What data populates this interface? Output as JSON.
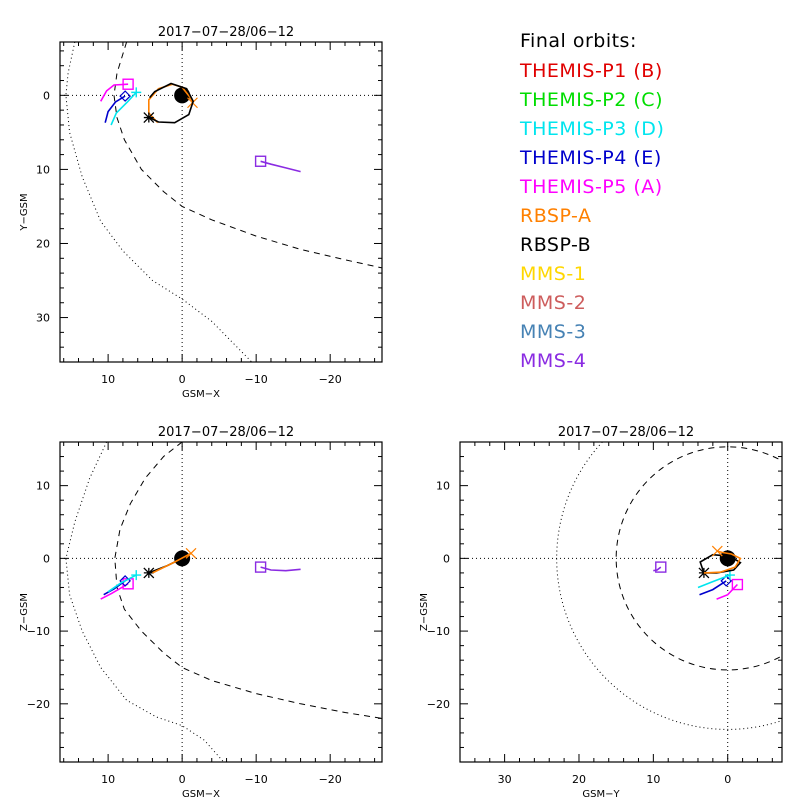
{
  "chart_data": [
    {
      "type": "line",
      "panel": "top-left",
      "title": "2017-07-28/06-12",
      "xlabel": "GSM-X",
      "ylabel": "Y-GSM",
      "xlim": [
        16.5,
        -27
      ],
      "ylim": [
        -7.2,
        36
      ],
      "y_inverted": true,
      "xticks": [
        10,
        0,
        -10,
        -20
      ],
      "yticks": [
        0,
        10,
        20,
        30
      ],
      "grid": "dotted zero lines",
      "boundaries": {
        "magnetopause": {
          "style": "dashed",
          "points": [
            [
              7.5,
              -7.2
            ],
            [
              8.8,
              -3
            ],
            [
              9.2,
              0
            ],
            [
              8.8,
              3
            ],
            [
              7.8,
              6
            ],
            [
              5.5,
              10
            ],
            [
              2.5,
              13
            ],
            [
              0,
              15
            ],
            [
              -4,
              16.8
            ],
            [
              -10,
              19
            ],
            [
              -16,
              20.8
            ],
            [
              -22,
              22.2
            ],
            [
              -27,
              23.3
            ]
          ]
        },
        "bow_shock": {
          "style": "dotted",
          "points": [
            [
              14.5,
              -7.2
            ],
            [
              15.4,
              -3
            ],
            [
              15.7,
              0
            ],
            [
              15.2,
              5
            ],
            [
              13.5,
              11
            ],
            [
              11,
              17
            ],
            [
              8,
              21
            ],
            [
              4,
              25
            ],
            [
              0,
              27.5
            ],
            [
              -4,
              30.5
            ],
            [
              -9.4,
              36
            ]
          ]
        }
      },
      "earth": [
        0,
        0
      ],
      "orbits": [
        {
          "name": "THEMIS-P5 (A)",
          "color": "#ff00ff",
          "points": [
            [
              11,
              0.8
            ],
            [
              10.2,
              -0.6
            ],
            [
              9.2,
              -1.4
            ],
            [
              7.3,
              -1.5
            ]
          ],
          "marker": "square",
          "marker_at": [
            7.3,
            -1.5
          ]
        },
        {
          "name": "THEMIS-P4 (E)",
          "color": "#0000cc",
          "points": [
            [
              10.4,
              3.7
            ],
            [
              10.0,
              2.2
            ],
            [
              9.0,
              0.9
            ],
            [
              7.7,
              0.1
            ]
          ],
          "marker": "diamond",
          "marker_at": [
            7.7,
            0.1
          ]
        },
        {
          "name": "THEMIS-P3 (D)",
          "color": "#00e5ee",
          "points": [
            [
              9.6,
              4.0
            ],
            [
              8.9,
              2.4
            ],
            [
              7.4,
              0.9
            ],
            [
              6.2,
              -0.4
            ]
          ],
          "marker": "plus",
          "marker_at": [
            6.2,
            -0.4
          ]
        },
        {
          "name": "RBSP-A",
          "color": "#ff8000",
          "points": [
            [
              3.3,
              3.7
            ],
            [
              4.5,
              2.4
            ],
            [
              4.5,
              0.6
            ],
            [
              3.2,
              -0.9
            ],
            [
              1.3,
              -1.5
            ],
            [
              0,
              -1.1
            ],
            [
              -1.1,
              0.3
            ],
            [
              -1.4,
              1
            ]
          ],
          "marker": "x",
          "marker_at": [
            -1.4,
            1
          ]
        },
        {
          "name": "RBSP-B",
          "color": "#000000",
          "points": [
            [
              4.4,
              3
            ],
            [
              3.2,
              3.6
            ],
            [
              1,
              3.7
            ],
            [
              -0.9,
              2.6
            ],
            [
              -1.5,
              0.8
            ],
            [
              -0.6,
              -0.9
            ],
            [
              1.5,
              -1.6
            ],
            [
              3.7,
              -0.5
            ],
            [
              4.4,
              0.3
            ]
          ],
          "marker": "asterisk",
          "marker_at": [
            4.5,
            3
          ]
        },
        {
          "name": "MMS-1..4",
          "color": "#8a2be2",
          "points": [
            [
              -10.6,
              8.9
            ],
            [
              -12,
              9.3
            ],
            [
              -14,
              9.8
            ],
            [
              -16,
              10.3
            ]
          ],
          "marker": "square",
          "marker_at": [
            -10.6,
            8.9
          ]
        }
      ]
    },
    {
      "type": "line",
      "panel": "bottom-left",
      "title": "2017-07-28/06-12",
      "xlabel": "GSM-X",
      "ylabel": "Z-GSM",
      "xlim": [
        16.5,
        -27
      ],
      "ylim": [
        16,
        -28
      ],
      "xticks": [
        10,
        0,
        -10,
        -20
      ],
      "yticks": [
        10,
        0,
        -10,
        -20
      ],
      "grid": "dotted zero lines",
      "boundaries": {
        "magnetopause": {
          "style": "dashed",
          "points": [
            [
              0,
              16
            ],
            [
              2.5,
              14
            ],
            [
              5,
              11
            ],
            [
              7,
              7.5
            ],
            [
              8.4,
              4
            ],
            [
              9.1,
              0
            ],
            [
              8.8,
              -4
            ],
            [
              7.8,
              -7
            ],
            [
              5.5,
              -10
            ],
            [
              2.5,
              -13
            ],
            [
              0,
              -15
            ],
            [
              -4,
              -16.8
            ],
            [
              -10,
              -18.6
            ],
            [
              -16,
              -20
            ],
            [
              -22,
              -21.2
            ],
            [
              -27,
              -22
            ]
          ]
        },
        "bow_shock": {
          "style": "dotted",
          "points": [
            [
              10.2,
              16
            ],
            [
              12.5,
              11
            ],
            [
              14.5,
              5
            ],
            [
              15.7,
              0
            ],
            [
              15.2,
              -5
            ],
            [
              13.5,
              -10
            ],
            [
              11,
              -15
            ],
            [
              7.5,
              -19.5
            ],
            [
              3.5,
              -21.8
            ],
            [
              0,
              -23
            ],
            [
              -3,
              -25
            ],
            [
              -5.6,
              -28
            ]
          ]
        }
      },
      "earth": [
        0,
        0
      ],
      "orbits": [
        {
          "name": "THEMIS-P5 (A)",
          "color": "#ff00ff",
          "points": [
            [
              11,
              -5.6
            ],
            [
              9.5,
              -4.8
            ],
            [
              7.3,
              -3.5
            ]
          ],
          "marker": "square",
          "marker_at": [
            7.3,
            -3.5
          ]
        },
        {
          "name": "THEMIS-P4 (E)",
          "color": "#0000cc",
          "points": [
            [
              10.6,
              -5
            ],
            [
              9.2,
              -4.2
            ],
            [
              7.7,
              -3.1
            ]
          ],
          "marker": "diamond",
          "marker_at": [
            7.7,
            -3.1
          ]
        },
        {
          "name": "THEMIS-P3 (D)",
          "color": "#00e5ee",
          "points": [
            [
              10,
              -4.6
            ],
            [
              8.3,
              -3.4
            ],
            [
              6.2,
              -2.3
            ]
          ],
          "marker": "plus",
          "marker_at": [
            6.2,
            -2.3
          ]
        },
        {
          "name": "RBSP-B",
          "color": "#000000",
          "points": [
            [
              4.5,
              -2
            ],
            [
              2,
              -1
            ],
            [
              0,
              0
            ]
          ],
          "marker": "asterisk",
          "marker_at": [
            4.5,
            -2
          ]
        },
        {
          "name": "RBSP-A",
          "color": "#ff8000",
          "points": [
            [
              4,
              -2
            ],
            [
              1,
              -0.5
            ],
            [
              -1.2,
              0.7
            ]
          ],
          "marker": "x",
          "marker_at": [
            -1.2,
            0.7
          ]
        },
        {
          "name": "MMS-1..4",
          "color": "#8a2be2",
          "points": [
            [
              -10.6,
              -1.2
            ],
            [
              -12,
              -1.6
            ],
            [
              -14,
              -1.7
            ],
            [
              -16,
              -1.5
            ]
          ],
          "marker": "square",
          "marker_at": [
            -10.6,
            -1.2
          ]
        }
      ]
    },
    {
      "type": "line",
      "panel": "bottom-right",
      "title": "2017-07-28/06-12",
      "xlabel": "GSM-Y",
      "ylabel": "Z-GSM",
      "xlim": [
        36,
        -7.3
      ],
      "ylim": [
        16,
        -28
      ],
      "xticks": [
        30,
        20,
        10,
        0
      ],
      "yticks": [
        10,
        0,
        -10,
        -20
      ],
      "grid": "dotted zero lines",
      "boundaries": {
        "magnetopause": {
          "style": "circle-dashed",
          "radius": 15
        },
        "bow_shock": {
          "style": "circle-dotted",
          "radius": 23
        }
      },
      "earth": [
        0,
        0
      ],
      "orbits": [
        {
          "name": "THEMIS-P5 (A)",
          "color": "#ff00ff",
          "points": [
            [
              1.5,
              -5.6
            ],
            [
              0,
              -5
            ],
            [
              -1.3,
              -3.6
            ]
          ],
          "marker": "square",
          "marker_at": [
            -1.3,
            -3.6
          ]
        },
        {
          "name": "THEMIS-P4 (E)",
          "color": "#0000cc",
          "points": [
            [
              3.8,
              -5
            ],
            [
              2,
              -4.3
            ],
            [
              0.2,
              -3.1
            ]
          ],
          "marker": "diamond",
          "marker_at": [
            0.2,
            -3.1
          ]
        },
        {
          "name": "THEMIS-P3 (D)",
          "color": "#00e5ee",
          "points": [
            [
              4,
              -4
            ],
            [
              2,
              -3.2
            ],
            [
              -0.3,
              -2.3
            ]
          ],
          "marker": "plus",
          "marker_at": [
            -0.3,
            -2.3
          ]
        },
        {
          "name": "RBSP-B",
          "color": "#000000",
          "points": [
            [
              3.2,
              -2
            ],
            [
              3.7,
              -0.5
            ],
            [
              2,
              0.5
            ],
            [
              -0.3,
              0.3
            ],
            [
              -1.7,
              -0.6
            ],
            [
              -0.8,
              -1.6
            ],
            [
              1.5,
              -2
            ],
            [
              3.2,
              -2
            ]
          ],
          "marker": "asterisk",
          "marker_at": [
            3.2,
            -2
          ]
        },
        {
          "name": "RBSP-A",
          "color": "#ff8000",
          "points": [
            [
              3.2,
              -2
            ],
            [
              1,
              -1.9
            ],
            [
              -1,
              -1.2
            ],
            [
              -1.7,
              0
            ],
            [
              -0.5,
              0.6
            ],
            [
              0.7,
              0.8
            ],
            [
              1.4,
              1
            ]
          ],
          "marker": "x",
          "marker_at": [
            1.4,
            1
          ]
        },
        {
          "name": "MMS-1..4",
          "color": "#8a2be2",
          "points": [
            [
              10,
              -1.7
            ],
            [
              9.5,
              -1.6
            ],
            [
              9,
              -1.2
            ]
          ],
          "marker": "square",
          "marker_at": [
            9,
            -1.2
          ]
        }
      ]
    }
  ],
  "legend": {
    "title": "Final orbits:",
    "items": [
      {
        "label": "THEMIS-P1 (B)",
        "color": "#e00000"
      },
      {
        "label": "THEMIS-P2 (C)",
        "color": "#00dd00"
      },
      {
        "label": "THEMIS-P3 (D)",
        "color": "#00e5ee"
      },
      {
        "label": "THEMIS-P4 (E)",
        "color": "#0000cc"
      },
      {
        "label": "THEMIS-P5 (A)",
        "color": "#ff00ff"
      },
      {
        "label": "RBSP-A",
        "color": "#ff8000"
      },
      {
        "label": "RBSP-B",
        "color": "#000000"
      },
      {
        "label": "MMS-1",
        "color": "#ffd700"
      },
      {
        "label": "MMS-2",
        "color": "#cd5c5c"
      },
      {
        "label": "MMS-3",
        "color": "#4682b4"
      },
      {
        "label": "MMS-4",
        "color": "#8a2be2"
      }
    ]
  }
}
